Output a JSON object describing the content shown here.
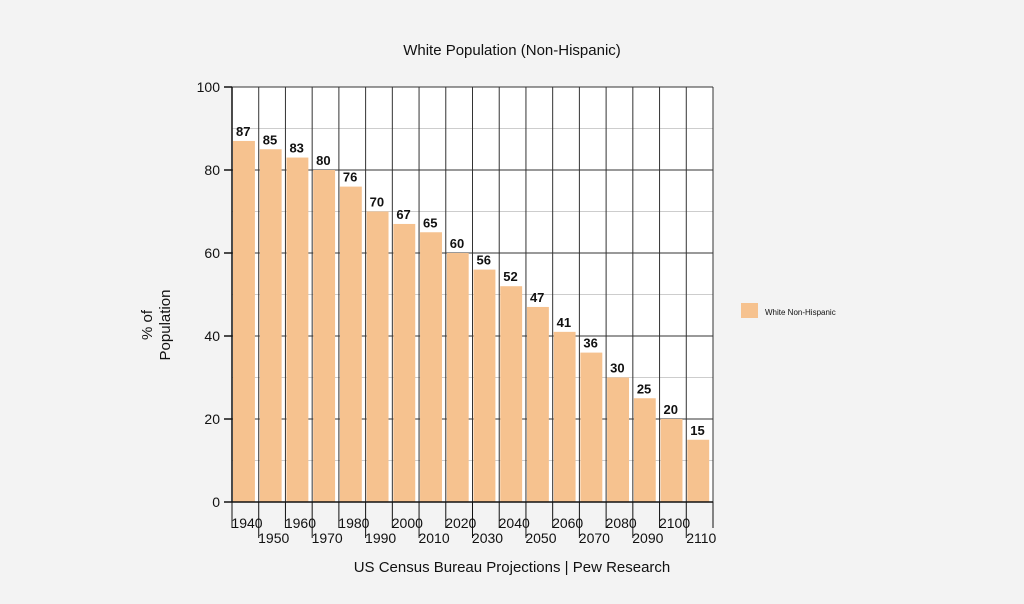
{
  "chart_data": {
    "type": "bar",
    "title": "White Population (Non-Hispanic)",
    "ylabel_lines": [
      "% of",
      "Population"
    ],
    "xlabel": "US Census Bureau Projections | Pew Research",
    "ylim": [
      0,
      100
    ],
    "yticks": [
      0,
      20,
      40,
      60,
      80,
      100
    ],
    "categories": [
      "1940",
      "1950",
      "1960",
      "1970",
      "1980",
      "1990",
      "2000",
      "2010",
      "2020",
      "2030",
      "2040",
      "2050",
      "2060",
      "2070",
      "2080",
      "2090",
      "2100",
      "2110"
    ],
    "series": [
      {
        "name": "White Non-Hispanic",
        "color": "#f6c28f",
        "values": [
          87,
          85,
          83,
          80,
          76,
          70,
          67,
          65,
          60,
          56,
          52,
          47,
          41,
          36,
          30,
          25,
          20,
          15
        ]
      }
    ],
    "grid": true,
    "legend_position": "right"
  }
}
